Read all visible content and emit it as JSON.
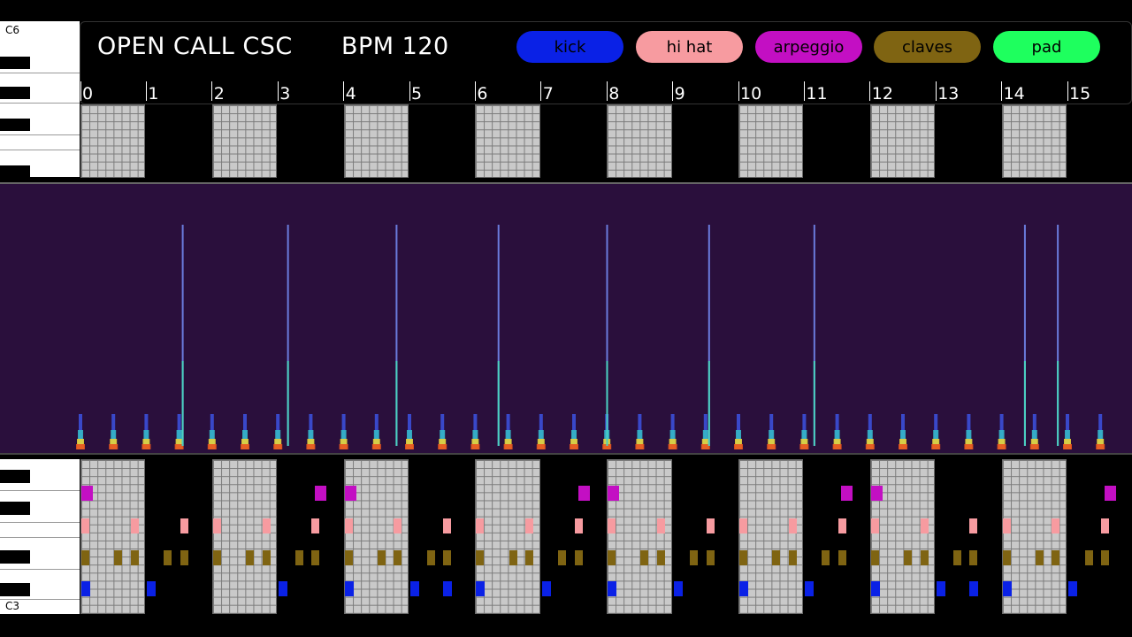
{
  "header": {
    "title": "OPEN CALL CSC",
    "tempo": "BPM 120"
  },
  "legend": [
    {
      "label": "kick",
      "bg": "#0a21e6",
      "fg": "#000000"
    },
    {
      "label": "hi hat",
      "bg": "#f79ba0",
      "fg": "#000000"
    },
    {
      "label": "arpeggio",
      "bg": "#c30fc3",
      "fg": "#000000"
    },
    {
      "label": "claves",
      "bg": "#7f6412",
      "fg": "#000000"
    },
    {
      "label": "pad",
      "bg": "#1eff5e",
      "fg": "#000000"
    }
  ],
  "beats": [
    "0",
    "1",
    "2",
    "3",
    "4",
    "5",
    "6",
    "7",
    "8",
    "9",
    "10",
    "11",
    "12",
    "13",
    "14",
    "15"
  ],
  "piano_top": {
    "label": "C6"
  },
  "piano_bottom": {
    "label": "C3"
  },
  "colors": {
    "kick": "#0a21e6",
    "hihat": "#f79ba0",
    "arpeggio": "#c30fc3",
    "claves": "#7f6412",
    "spectrogram_bg": "#2a0f3c"
  },
  "notes": {
    "arpeggio": [
      0,
      3.55,
      4,
      7.55,
      8,
      11.55,
      12,
      15.55
    ],
    "hihat": [
      0,
      0.75,
      1.5,
      2,
      2.75,
      3.5,
      4,
      4.75,
      5.5,
      6,
      6.75,
      7.5,
      8,
      8.75,
      9.5,
      10,
      10.75,
      11.5,
      12,
      12.75,
      13.5,
      14,
      14.75,
      15.5
    ],
    "claves": [
      0,
      0.5,
      0.75,
      1.25,
      1.5,
      2,
      2.5,
      2.75,
      3.25,
      3.5,
      4,
      4.5,
      4.75,
      5.25,
      5.5,
      6,
      6.5,
      6.75,
      7.25,
      7.5,
      8,
      8.5,
      8.75,
      9.25,
      9.5,
      10,
      10.5,
      10.75,
      11.25,
      11.5,
      12,
      12.5,
      12.75,
      13.25,
      13.5,
      14,
      14.5,
      14.75,
      15.25,
      15.5
    ],
    "kick": [
      0,
      1,
      3,
      4,
      5,
      5.5,
      6,
      7,
      8,
      9,
      10,
      11,
      12,
      13,
      13.5,
      14,
      15
    ]
  },
  "spectrogram": {
    "tall_peaks": [
      1.5,
      3.1,
      4.75,
      6.3,
      7.95,
      9.5,
      11.1,
      14.3,
      14.8
    ],
    "onsets": [
      0,
      0.5,
      1,
      1.5,
      2,
      2.5,
      3,
      3.5,
      4,
      4.5,
      5,
      5.5,
      6,
      6.5,
      7,
      7.5,
      8,
      8.5,
      9,
      9.5,
      10,
      10.5,
      11,
      11.5,
      12,
      12.5,
      13,
      13.5,
      14,
      14.5,
      15,
      15.5
    ]
  }
}
